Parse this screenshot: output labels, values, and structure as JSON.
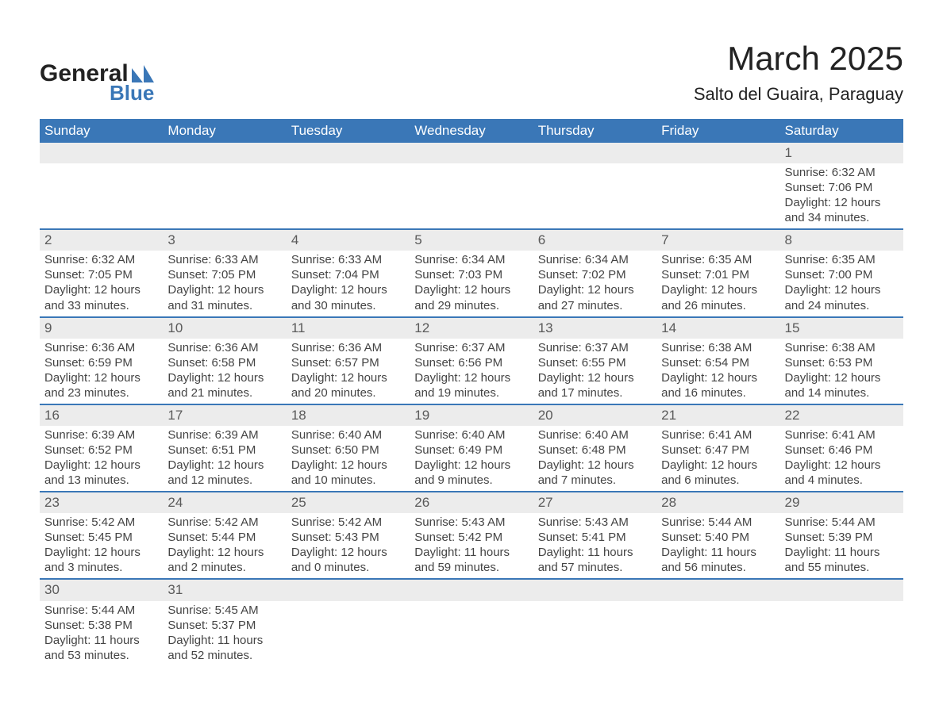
{
  "logo": {
    "general": "General",
    "blue": "Blue"
  },
  "title": "March 2025",
  "subtitle": "Salto del Guaira, Paraguay",
  "colors": {
    "header_bg": "#3a77b7",
    "header_text": "#ffffff",
    "row_border": "#3a77b7",
    "daynum_bg": "#ececec",
    "daynum_text": "#5a5a5a",
    "body_text": "#444444",
    "page_bg": "#ffffff",
    "logo_accent": "#3a77b7"
  },
  "weekday_headers": [
    "Sunday",
    "Monday",
    "Tuesday",
    "Wednesday",
    "Thursday",
    "Friday",
    "Saturday"
  ],
  "weeks": [
    [
      {
        "day": null
      },
      {
        "day": null
      },
      {
        "day": null
      },
      {
        "day": null
      },
      {
        "day": null
      },
      {
        "day": null
      },
      {
        "day": "1",
        "sunrise": "Sunrise: 6:32 AM",
        "sunset": "Sunset: 7:06 PM",
        "daylight": "Daylight: 12 hours and 34 minutes."
      }
    ],
    [
      {
        "day": "2",
        "sunrise": "Sunrise: 6:32 AM",
        "sunset": "Sunset: 7:05 PM",
        "daylight": "Daylight: 12 hours and 33 minutes."
      },
      {
        "day": "3",
        "sunrise": "Sunrise: 6:33 AM",
        "sunset": "Sunset: 7:05 PM",
        "daylight": "Daylight: 12 hours and 31 minutes."
      },
      {
        "day": "4",
        "sunrise": "Sunrise: 6:33 AM",
        "sunset": "Sunset: 7:04 PM",
        "daylight": "Daylight: 12 hours and 30 minutes."
      },
      {
        "day": "5",
        "sunrise": "Sunrise: 6:34 AM",
        "sunset": "Sunset: 7:03 PM",
        "daylight": "Daylight: 12 hours and 29 minutes."
      },
      {
        "day": "6",
        "sunrise": "Sunrise: 6:34 AM",
        "sunset": "Sunset: 7:02 PM",
        "daylight": "Daylight: 12 hours and 27 minutes."
      },
      {
        "day": "7",
        "sunrise": "Sunrise: 6:35 AM",
        "sunset": "Sunset: 7:01 PM",
        "daylight": "Daylight: 12 hours and 26 minutes."
      },
      {
        "day": "8",
        "sunrise": "Sunrise: 6:35 AM",
        "sunset": "Sunset: 7:00 PM",
        "daylight": "Daylight: 12 hours and 24 minutes."
      }
    ],
    [
      {
        "day": "9",
        "sunrise": "Sunrise: 6:36 AM",
        "sunset": "Sunset: 6:59 PM",
        "daylight": "Daylight: 12 hours and 23 minutes."
      },
      {
        "day": "10",
        "sunrise": "Sunrise: 6:36 AM",
        "sunset": "Sunset: 6:58 PM",
        "daylight": "Daylight: 12 hours and 21 minutes."
      },
      {
        "day": "11",
        "sunrise": "Sunrise: 6:36 AM",
        "sunset": "Sunset: 6:57 PM",
        "daylight": "Daylight: 12 hours and 20 minutes."
      },
      {
        "day": "12",
        "sunrise": "Sunrise: 6:37 AM",
        "sunset": "Sunset: 6:56 PM",
        "daylight": "Daylight: 12 hours and 19 minutes."
      },
      {
        "day": "13",
        "sunrise": "Sunrise: 6:37 AM",
        "sunset": "Sunset: 6:55 PM",
        "daylight": "Daylight: 12 hours and 17 minutes."
      },
      {
        "day": "14",
        "sunrise": "Sunrise: 6:38 AM",
        "sunset": "Sunset: 6:54 PM",
        "daylight": "Daylight: 12 hours and 16 minutes."
      },
      {
        "day": "15",
        "sunrise": "Sunrise: 6:38 AM",
        "sunset": "Sunset: 6:53 PM",
        "daylight": "Daylight: 12 hours and 14 minutes."
      }
    ],
    [
      {
        "day": "16",
        "sunrise": "Sunrise: 6:39 AM",
        "sunset": "Sunset: 6:52 PM",
        "daylight": "Daylight: 12 hours and 13 minutes."
      },
      {
        "day": "17",
        "sunrise": "Sunrise: 6:39 AM",
        "sunset": "Sunset: 6:51 PM",
        "daylight": "Daylight: 12 hours and 12 minutes."
      },
      {
        "day": "18",
        "sunrise": "Sunrise: 6:40 AM",
        "sunset": "Sunset: 6:50 PM",
        "daylight": "Daylight: 12 hours and 10 minutes."
      },
      {
        "day": "19",
        "sunrise": "Sunrise: 6:40 AM",
        "sunset": "Sunset: 6:49 PM",
        "daylight": "Daylight: 12 hours and 9 minutes."
      },
      {
        "day": "20",
        "sunrise": "Sunrise: 6:40 AM",
        "sunset": "Sunset: 6:48 PM",
        "daylight": "Daylight: 12 hours and 7 minutes."
      },
      {
        "day": "21",
        "sunrise": "Sunrise: 6:41 AM",
        "sunset": "Sunset: 6:47 PM",
        "daylight": "Daylight: 12 hours and 6 minutes."
      },
      {
        "day": "22",
        "sunrise": "Sunrise: 6:41 AM",
        "sunset": "Sunset: 6:46 PM",
        "daylight": "Daylight: 12 hours and 4 minutes."
      }
    ],
    [
      {
        "day": "23",
        "sunrise": "Sunrise: 5:42 AM",
        "sunset": "Sunset: 5:45 PM",
        "daylight": "Daylight: 12 hours and 3 minutes."
      },
      {
        "day": "24",
        "sunrise": "Sunrise: 5:42 AM",
        "sunset": "Sunset: 5:44 PM",
        "daylight": "Daylight: 12 hours and 2 minutes."
      },
      {
        "day": "25",
        "sunrise": "Sunrise: 5:42 AM",
        "sunset": "Sunset: 5:43 PM",
        "daylight": "Daylight: 12 hours and 0 minutes."
      },
      {
        "day": "26",
        "sunrise": "Sunrise: 5:43 AM",
        "sunset": "Sunset: 5:42 PM",
        "daylight": "Daylight: 11 hours and 59 minutes."
      },
      {
        "day": "27",
        "sunrise": "Sunrise: 5:43 AM",
        "sunset": "Sunset: 5:41 PM",
        "daylight": "Daylight: 11 hours and 57 minutes."
      },
      {
        "day": "28",
        "sunrise": "Sunrise: 5:44 AM",
        "sunset": "Sunset: 5:40 PM",
        "daylight": "Daylight: 11 hours and 56 minutes."
      },
      {
        "day": "29",
        "sunrise": "Sunrise: 5:44 AM",
        "sunset": "Sunset: 5:39 PM",
        "daylight": "Daylight: 11 hours and 55 minutes."
      }
    ],
    [
      {
        "day": "30",
        "sunrise": "Sunrise: 5:44 AM",
        "sunset": "Sunset: 5:38 PM",
        "daylight": "Daylight: 11 hours and 53 minutes."
      },
      {
        "day": "31",
        "sunrise": "Sunrise: 5:45 AM",
        "sunset": "Sunset: 5:37 PM",
        "daylight": "Daylight: 11 hours and 52 minutes."
      },
      {
        "day": null
      },
      {
        "day": null
      },
      {
        "day": null
      },
      {
        "day": null
      },
      {
        "day": null
      }
    ]
  ]
}
